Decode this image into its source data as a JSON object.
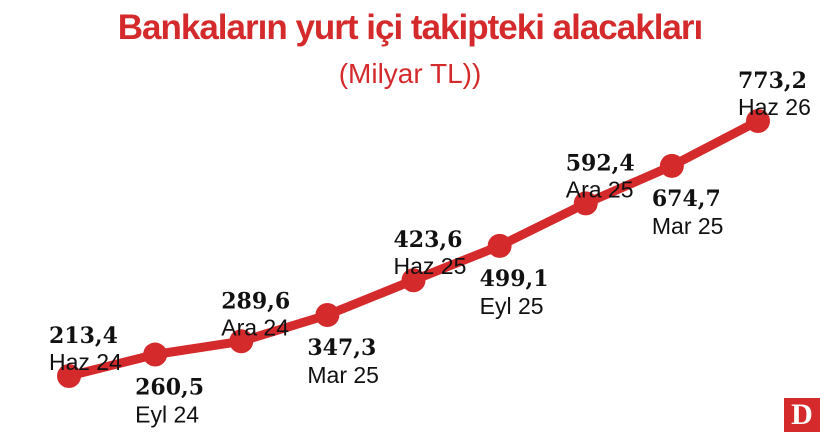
{
  "title": "Bankaların yurt içi takipteki alacakları",
  "subtitle": "(Milyar TL))",
  "colors": {
    "accent": "#d42a2c",
    "text": "#111111",
    "white": "#ffffff"
  },
  "logo_text": "D",
  "chart_data": {
    "type": "line",
    "title": "Bankaların yurt içi takipteki alacakları",
    "subtitle": "(Milyar TL))",
    "x": [
      "Haz 24",
      "Eyl 24",
      "Ara 24",
      "Mar 25",
      "Haz 25",
      "Eyl 25",
      "Ara 25",
      "Mar 25",
      "Haz 26"
    ],
    "value_labels": [
      "213,4",
      "260,5",
      "289,6",
      "347,3",
      "423,6",
      "499,1",
      "592,4",
      "674,7",
      "773,2"
    ],
    "series": [
      {
        "values": [
          213.4,
          260.5,
          289.6,
          347.3,
          423.6,
          499.1,
          592.4,
          674.7,
          773.2
        ]
      }
    ],
    "ylim": [
      213.4,
      773.2
    ],
    "grid": false,
    "legend": "none"
  }
}
